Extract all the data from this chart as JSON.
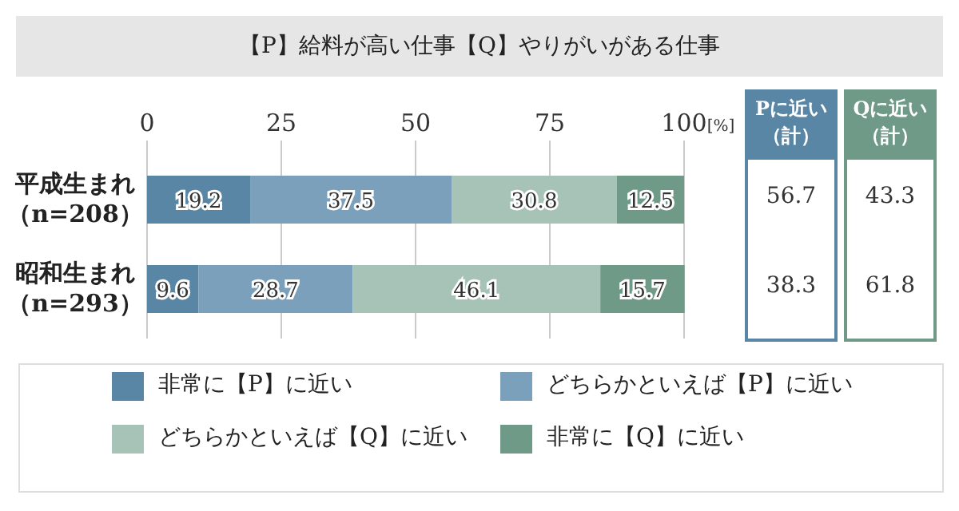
{
  "chart_data": {
    "type": "bar",
    "orientation": "horizontal",
    "stacked": true,
    "title": "【P】給料が高い仕事【Q】やりがいがある仕事",
    "categories": [
      "平成生まれ（n=208）",
      "昭和生まれ（n=293）"
    ],
    "series": [
      {
        "name": "非常に【P】に近い",
        "color": "#5a86a6",
        "values": [
          19.2,
          9.6
        ]
      },
      {
        "name": "どちらかといえば【P】に近い",
        "color": "#7aa0bb",
        "values": [
          37.5,
          28.7
        ]
      },
      {
        "name": "どちらかといえば【Q】に近い",
        "color": "#a7c3b8",
        "values": [
          30.8,
          46.1
        ]
      },
      {
        "name": "非常に【Q】に近い",
        "color": "#6f9a88",
        "values": [
          12.5,
          15.7
        ]
      }
    ],
    "xlim": [
      0,
      100
    ],
    "xticks": [
      0,
      25,
      50,
      75,
      {
        "value": 100,
        "label": "100[%]"
      }
    ],
    "grid": "x",
    "legend": "bottom",
    "data_labels": true,
    "annotations": [
      "Pに近い（計）",
      "Qに近い（計）",
      "56.7",
      "43.3",
      "38.3",
      "61.8"
    ]
  }
}
